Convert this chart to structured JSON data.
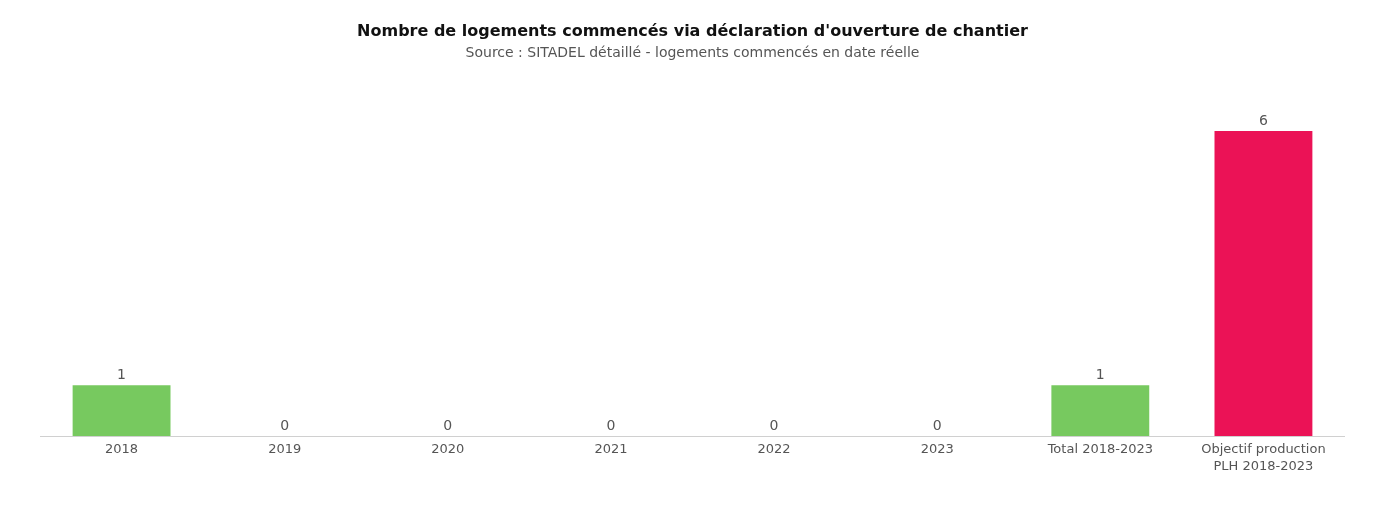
{
  "chart_data": {
    "type": "bar",
    "title": "Nombre de logements commencés via déclaration d'ouverture de chantier",
    "subtitle": "Source : SITADEL détaillé - logements commencés en date réelle",
    "categories": [
      "2018",
      "2019",
      "2020",
      "2021",
      "2022",
      "2023",
      "Total 2018-2023",
      "Objectif production\nPLH 2018-2023"
    ],
    "values": [
      1,
      0,
      0,
      0,
      0,
      0,
      1,
      6
    ],
    "colors": [
      "#77c95f",
      "#77c95f",
      "#77c95f",
      "#77c95f",
      "#77c95f",
      "#77c95f",
      "#77c95f",
      "#eb1256"
    ],
    "data_labels": true
  }
}
